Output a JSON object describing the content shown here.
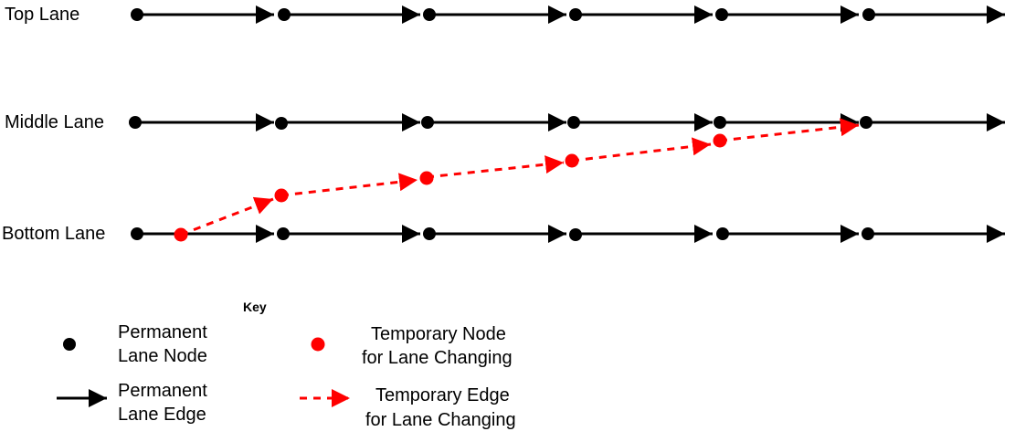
{
  "lanes": {
    "top": "Top Lane",
    "middle": "Middle Lane",
    "bottom": "Bottom Lane"
  },
  "key": {
    "title": "Key",
    "permanent_node": [
      "Permanent",
      "Lane Node"
    ],
    "permanent_edge": [
      "Permanent",
      "Lane Edge"
    ],
    "temporary_node": [
      "Temporary Node",
      "for Lane Changing"
    ],
    "temporary_edge": [
      "Temporary Edge",
      "for Lane Changing"
    ]
  },
  "colors": {
    "permanent": "#000000",
    "temporary": "#ff0000"
  }
}
